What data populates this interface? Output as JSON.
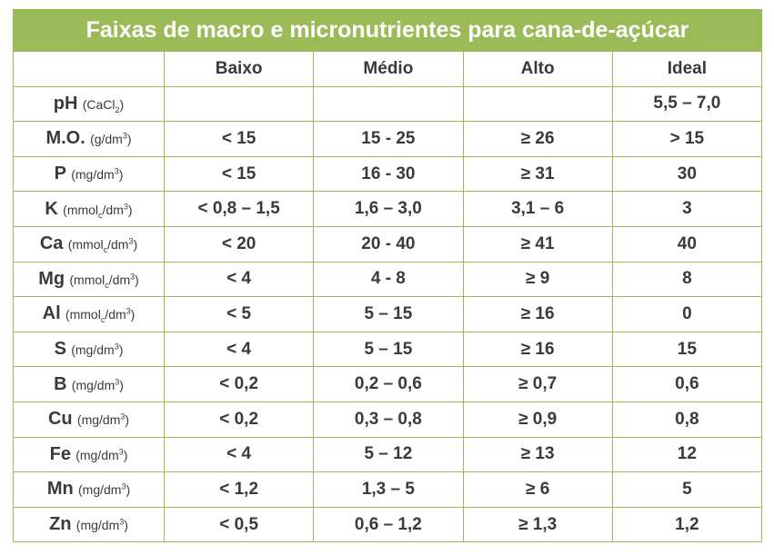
{
  "title": "Faixas de macro e micronutrientes para cana-de-açúcar",
  "headers": [
    "",
    "Baixo",
    "Médio",
    "Alto",
    "Ideal"
  ],
  "rows": [
    {
      "name": "pH",
      "unit": {
        "pre": "(CaCl",
        "sub": "2",
        "post": ")"
      },
      "values": [
        "",
        "",
        "",
        "5,5 – 7,0"
      ]
    },
    {
      "name": "M.O.",
      "unit": {
        "pre": "(g/dm",
        "sup": "3",
        "post": ")"
      },
      "values": [
        "< 15",
        "15 - 25",
        "≥ 26",
        "> 15"
      ]
    },
    {
      "name": "P",
      "unit": {
        "pre": "(mg/dm",
        "sup": "3",
        "post": ")"
      },
      "values": [
        "< 15",
        "16 - 30",
        "≥ 31",
        "30"
      ]
    },
    {
      "name": "K",
      "unit": {
        "pre": "(mmol",
        "sub": "c",
        "mid": "/dm",
        "sup": "3",
        "post": ")"
      },
      "values": [
        "< 0,8 – 1,5",
        "1,6 – 3,0",
        "3,1 – 6",
        "3"
      ]
    },
    {
      "name": "Ca",
      "unit": {
        "pre": "(mmol",
        "sub": "c",
        "mid": "/dm",
        "sup": "3",
        "post": ")"
      },
      "values": [
        "< 20",
        "20 - 40",
        "≥ 41",
        "40"
      ]
    },
    {
      "name": "Mg",
      "unit": {
        "pre": "(mmol",
        "sub": "c",
        "mid": "/dm",
        "sup": "3",
        "post": ")"
      },
      "values": [
        "< 4",
        "4 - 8",
        "≥ 9",
        "8"
      ]
    },
    {
      "name": "Al",
      "unit": {
        "pre": "(mmol",
        "sub": "c",
        "mid": "/dm",
        "sup": "3",
        "post": ")"
      },
      "values": [
        "< 5",
        "5 – 15",
        "≥ 16",
        "0"
      ]
    },
    {
      "name": "S",
      "unit": {
        "pre": "(mg/dm",
        "sup": "3",
        "post": ")"
      },
      "values": [
        "< 4",
        "5 – 15",
        "≥ 16",
        "15"
      ]
    },
    {
      "name": "B",
      "unit": {
        "pre": "(mg/dm",
        "sup": "3",
        "post": ")"
      },
      "values": [
        "< 0,2",
        "0,2 – 0,6",
        "≥ 0,7",
        "0,6"
      ]
    },
    {
      "name": "Cu",
      "unit": {
        "pre": "(mg/dm",
        "sup": "3",
        "post": ")"
      },
      "values": [
        "< 0,2",
        "0,3 – 0,8",
        "≥ 0,9",
        "0,8"
      ]
    },
    {
      "name": "Fe",
      "unit": {
        "pre": "(mg/dm",
        "sup": "3",
        "post": ")"
      },
      "values": [
        "< 4",
        "5 – 12",
        "≥ 13",
        "12"
      ]
    },
    {
      "name": "Mn",
      "unit": {
        "pre": "(mg/dm",
        "sup": "3",
        "post": ")"
      },
      "values": [
        "< 1,2",
        "1,3 – 5",
        "≥ 6",
        "5"
      ]
    },
    {
      "name": "Zn",
      "unit": {
        "pre": "(mg/dm",
        "sup": "3",
        "post": ")"
      },
      "values": [
        "< 0,5",
        "0,6 – 1,2",
        "≥ 1,3",
        "1,2"
      ]
    }
  ],
  "colors": {
    "accent": "#9bbb59",
    "text": "#3a3a3a"
  }
}
